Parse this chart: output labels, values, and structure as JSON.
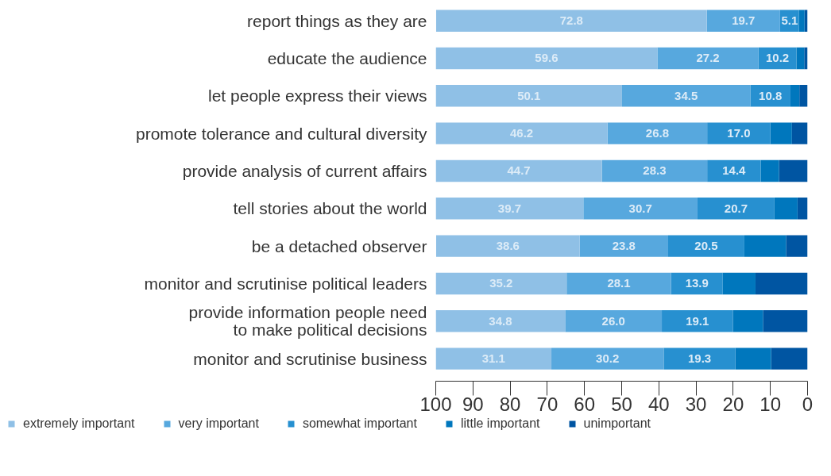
{
  "chart_data": {
    "type": "bar",
    "orientation": "horizontal",
    "stacked": true,
    "categories": [
      "report things as they are",
      "educate the audience",
      "let people express their views",
      "promote tolerance and cultural diversity",
      "provide analysis of current affairs",
      "tell stories about the world",
      "be a detached observer",
      "monitor and scrutinise political leaders",
      "provide information people need\nto make political decisions",
      "monitor and scrutinise business"
    ],
    "series": [
      {
        "name": "unimportant",
        "color": "#0055a2",
        "values": [
          0.8,
          0.9,
          2.2,
          4.2,
          7.7,
          2.7,
          5.8,
          14.0,
          12.0,
          9.8
        ]
      },
      {
        "name": "little important",
        "color": "#0077bd",
        "values": [
          1.5,
          2.1,
          2.4,
          5.8,
          4.9,
          6.2,
          11.2,
          8.8,
          8.1,
          9.6
        ]
      },
      {
        "name": "somewhat important",
        "color": "#2790d0",
        "values": [
          5.1,
          10.2,
          10.8,
          17.0,
          14.4,
          20.7,
          20.5,
          13.9,
          19.1,
          19.3
        ],
        "value_labels": [
          "5.1",
          "10.2",
          "10.8",
          "17.0",
          "14.4",
          "20.7",
          "20.5",
          "13.9",
          "19.1",
          "19.3"
        ]
      },
      {
        "name": "very important",
        "color": "#57a8de",
        "values": [
          19.7,
          27.2,
          34.5,
          26.8,
          28.3,
          30.7,
          23.8,
          28.1,
          26.0,
          30.2
        ],
        "value_labels": [
          "19.7",
          "27.2",
          "34.5",
          "26.8",
          "28.3",
          "30.7",
          "23.8",
          "28.1",
          "26.0",
          "30.2"
        ]
      },
      {
        "name": "extremely important",
        "color": "#8fc0e6",
        "values": [
          72.8,
          59.6,
          50.1,
          46.2,
          44.7,
          39.7,
          38.6,
          35.2,
          34.8,
          31.1
        ],
        "value_labels": [
          "72.8",
          "59.6",
          "50.1",
          "46.2",
          "44.7",
          "39.7",
          "38.6",
          "35.2",
          "34.8",
          "31.1"
        ]
      }
    ],
    "xlim": [
      100,
      0
    ],
    "xticks": [
      100,
      90,
      80,
      70,
      60,
      50,
      40,
      30,
      20,
      10,
      0
    ],
    "grid": false,
    "legend": "bottom"
  }
}
